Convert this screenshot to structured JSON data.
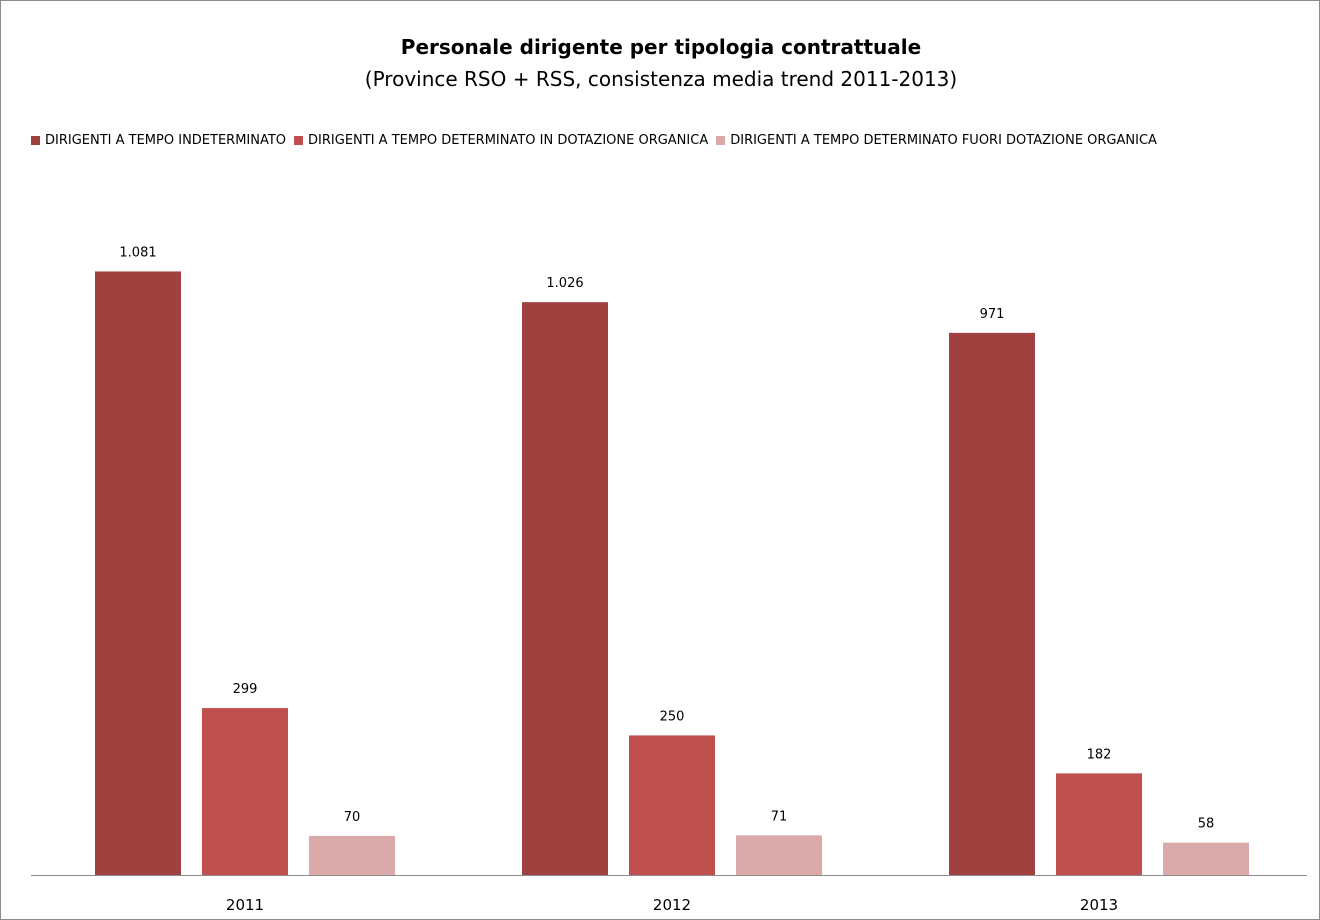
{
  "chart_data": {
    "type": "bar",
    "title": "Personale dirigente per tipologia contrattuale",
    "subtitle": "(Province RSO + RSS, consistenza media trend 2011-2013)",
    "categories": [
      "2011",
      "2012",
      "2013"
    ],
    "series": [
      {
        "name": "DIRIGENTI A TEMPO INDETERMINATO",
        "color": "#9E413F",
        "values": [
          1081,
          1026,
          971
        ],
        "labels": [
          "1.081",
          "1.026",
          "971"
        ]
      },
      {
        "name": "DIRIGENTI A TEMPO DETERMINATO IN DOTAZIONE ORGANICA",
        "color": "#C0504D",
        "values": [
          299,
          250,
          182
        ],
        "labels": [
          "299",
          "250",
          "182"
        ]
      },
      {
        "name": "DIRIGENTI A TEMPO DETERMINATO FUORI DOTAZIONE ORGANICA",
        "color": "#D9AAA9",
        "values": [
          70,
          71,
          58
        ],
        "labels": [
          "70",
          "71",
          "58"
        ]
      }
    ],
    "ylim": [
      0,
      1200
    ],
    "grid": false,
    "legend_position": "top"
  }
}
